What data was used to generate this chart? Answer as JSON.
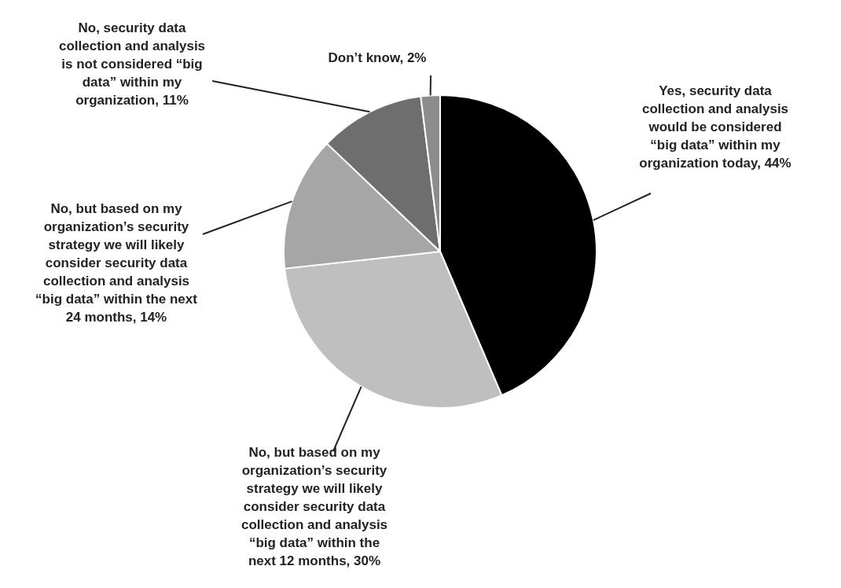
{
  "chart_data": {
    "type": "pie",
    "categories": [
      "Yes, security data collection and analysis would be considered “big data” within my organization today, 44%",
      "No, but based on my organization’s security strategy we will likely consider security data collection and analysis “big data” within the next 12 months, 30%",
      "No, but based on my organization’s security strategy we will likely consider security data collection and analysis “big data” within the next 24 months, 14%",
      "No, security data collection and analysis is not considered “big data” within my organization, 11%",
      "Don’t know, 2%"
    ],
    "values": [
      44,
      30,
      14,
      11,
      2
    ],
    "colors": [
      "#000000",
      "#bfbfbf",
      "#a6a6a6",
      "#6e6e6e",
      "#8c8c8c"
    ],
    "legend": false
  }
}
